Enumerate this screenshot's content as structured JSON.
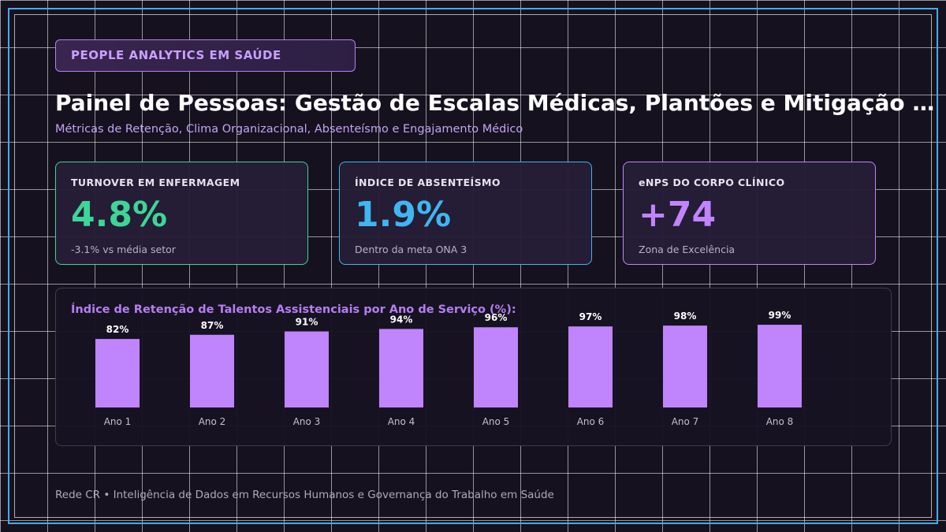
{
  "badge": "PEOPLE ANALYTICS EM SAÚDE",
  "title": "Painel de Pessoas: Gestão de Escalas Médicas, Plantões e Mitigação d...",
  "subtitle": "Métricas de Retenção, Clima Organizacional, Absenteísmo e Engajamento Médico",
  "kpis": [
    {
      "label": "TURNOVER EM ENFERMAGEM",
      "value": "4.8%",
      "note": "-3.1% vs média setor",
      "color": "#3dd598"
    },
    {
      "label": "ÍNDICE DE ABSENTEÍSMO",
      "value": "1.9%",
      "note": "Dentro da meta ONA 3",
      "color": "#3fb6f0"
    },
    {
      "label": "eNPS DO CORPO CLÍNICO",
      "value": "+74",
      "note": "Zona de Excelência",
      "color": "#c084fc"
    }
  ],
  "chart_data": {
    "type": "bar",
    "title": "Índice de Retenção de Talentos Assistenciais por Ano de Serviço (%):",
    "categories": [
      "Ano 1",
      "Ano 2",
      "Ano 3",
      "Ano 4",
      "Ano 5",
      "Ano 6",
      "Ano 7",
      "Ano 8"
    ],
    "values": [
      82,
      87,
      91,
      94,
      96,
      97,
      98,
      99
    ],
    "value_labels": [
      "82%",
      "87%",
      "91%",
      "94%",
      "96%",
      "97%",
      "98%",
      "99%"
    ],
    "ylim": [
      0,
      100
    ],
    "bar_color": "#c084fc",
    "grid": false
  },
  "footer": "Rede CR • Inteligência de Dados em Recursos Humanos e Governança do Trabalho em Saúde"
}
